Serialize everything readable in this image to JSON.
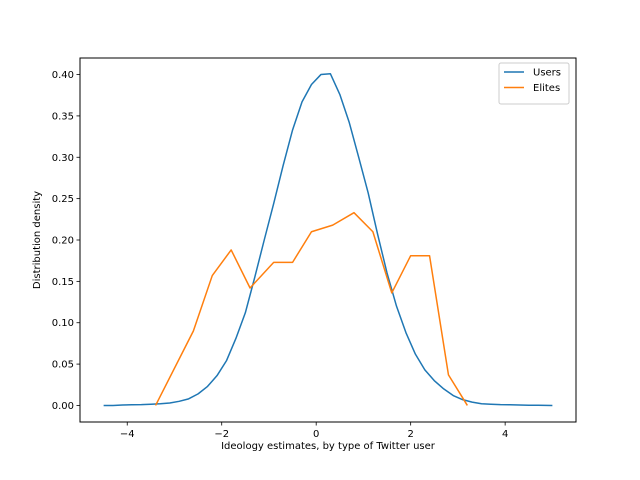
{
  "chart_data": {
    "type": "line",
    "title": "",
    "xlabel": "Ideology estimates, by type of Twitter user",
    "ylabel": "Distribution density",
    "xlim": [
      -5.0,
      5.5
    ],
    "ylim": [
      -0.02,
      0.42
    ],
    "x_ticks": [
      -4,
      -2,
      0,
      2,
      4
    ],
    "x_tick_labels": [
      "−4",
      "−2",
      "0",
      "2",
      "4"
    ],
    "y_ticks": [
      0.0,
      0.05,
      0.1,
      0.15,
      0.2,
      0.25,
      0.3,
      0.35,
      0.4
    ],
    "y_tick_labels": [
      "0.00",
      "0.05",
      "0.10",
      "0.15",
      "0.20",
      "0.25",
      "0.30",
      "0.35",
      "0.40"
    ],
    "grid": false,
    "legend": {
      "position": "top-right"
    },
    "series": [
      {
        "name": "Users",
        "color": "#1f77b4",
        "x": [
          -4.5,
          -4.3,
          -4.1,
          -3.9,
          -3.7,
          -3.5,
          -3.3,
          -3.1,
          -2.9,
          -2.7,
          -2.5,
          -2.3,
          -2.1,
          -1.9,
          -1.7,
          -1.5,
          -1.3,
          -1.1,
          -0.9,
          -0.7,
          -0.5,
          -0.3,
          -0.1,
          0.1,
          0.3,
          0.5,
          0.7,
          0.9,
          1.1,
          1.3,
          1.5,
          1.7,
          1.9,
          2.1,
          2.3,
          2.5,
          2.7,
          2.9,
          3.1,
          3.3,
          3.5,
          3.7,
          3.9,
          4.1,
          4.3,
          4.5,
          4.7,
          5.0
        ],
        "y": [
          0.0,
          0.0,
          0.0005,
          0.0008,
          0.001,
          0.0015,
          0.002,
          0.003,
          0.005,
          0.008,
          0.014,
          0.023,
          0.036,
          0.054,
          0.081,
          0.112,
          0.155,
          0.2,
          0.244,
          0.29,
          0.333,
          0.367,
          0.388,
          0.4,
          0.401,
          0.376,
          0.342,
          0.3,
          0.257,
          0.207,
          0.16,
          0.12,
          0.088,
          0.062,
          0.043,
          0.03,
          0.02,
          0.012,
          0.007,
          0.004,
          0.002,
          0.0015,
          0.001,
          0.0008,
          0.0005,
          0.0003,
          0.0002,
          0.0
        ]
      },
      {
        "name": "Elites",
        "color": "#ff7f0e",
        "x": [
          -3.4,
          -2.6,
          -2.2,
          -1.8,
          -1.4,
          -0.9,
          -0.5,
          -0.1,
          0.35,
          0.8,
          1.2,
          1.6,
          2.0,
          2.4,
          2.8,
          3.2
        ],
        "y": [
          0.0,
          0.09,
          0.157,
          0.188,
          0.142,
          0.173,
          0.173,
          0.21,
          0.218,
          0.233,
          0.21,
          0.136,
          0.181,
          0.181,
          0.037,
          0.0
        ]
      }
    ]
  }
}
